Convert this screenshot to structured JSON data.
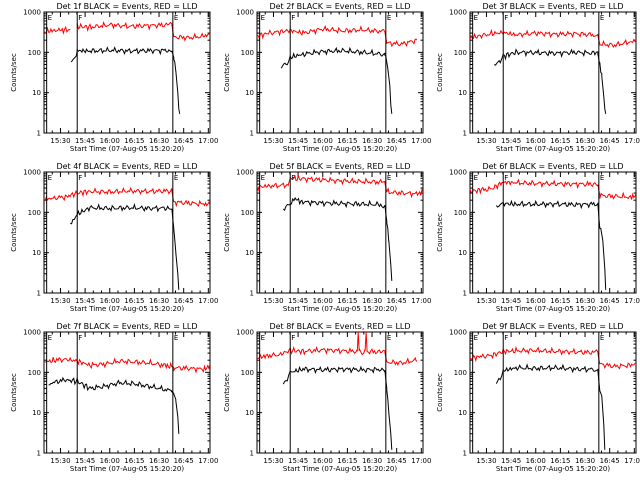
{
  "figure": {
    "background": "#ffffff",
    "event_color": "#000000",
    "lld_color": "#ff0000"
  },
  "chart_data": [
    {
      "type": "line",
      "title": "Det 1f BLACK = Events, RED = LLD",
      "xlabel": "Start Time (07-Aug-05 15:20:20)",
      "ylabel": "Counts/sec",
      "yscale": "log",
      "xlim": [
        15.333,
        17.017
      ],
      "ylim": [
        1,
        1000
      ],
      "xticks": [
        "15:30",
        "15:45",
        "16:00",
        "16:15",
        "16:30",
        "16:45",
        "17:00"
      ],
      "yticks": [
        "1",
        "10",
        "100",
        "1000"
      ],
      "markers": [
        {
          "label": "E",
          "x": 15.36
        },
        {
          "label": "F",
          "x": 15.67
        },
        {
          "label": "E",
          "x": 16.64
        }
      ],
      "series": [
        {
          "name": "Events",
          "color": "#000000",
          "x": [
            15.53,
            15.61,
            15.63,
            15.66,
            15.67,
            15.8,
            16.0,
            16.2,
            16.4,
            16.6,
            16.63,
            16.65,
            16.67,
            16.69,
            16.7,
            16.71
          ],
          "y": [
            null,
            60,
            65,
            80,
            110,
            108,
            112,
            108,
            110,
            112,
            110,
            75,
            35,
            10,
            4,
            3
          ]
        },
        {
          "name": "LLD",
          "color": "#ff0000",
          "x": [
            15.333,
            15.45,
            15.53,
            15.6,
            15.67,
            15.8,
            16.0,
            16.2,
            16.4,
            16.6,
            16.63,
            16.65,
            16.8,
            16.95,
            17.017
          ],
          "y": [
            330,
            350,
            360,
            null,
            440,
            420,
            480,
            440,
            460,
            480,
            470,
            240,
            230,
            250,
            300
          ]
        }
      ]
    },
    {
      "type": "line",
      "title": "Det 2f BLACK = Events, RED = LLD",
      "xlabel": "Start Time (07-Aug-05 15:20:20)",
      "ylabel": "Counts/sec",
      "yscale": "log",
      "xlim": [
        15.333,
        17.017
      ],
      "ylim": [
        1,
        1000
      ],
      "xticks": [
        "15:30",
        "15:45",
        "16:00",
        "16:15",
        "16:30",
        "16:45",
        "17:00"
      ],
      "yticks": [
        "1",
        "10",
        "100",
        "1000"
      ],
      "markers": [
        {
          "label": "E",
          "x": 15.36
        },
        {
          "label": "F",
          "x": 15.67
        },
        {
          "label": "E",
          "x": 16.64
        }
      ],
      "series": [
        {
          "name": "Events",
          "color": "#000000",
          "x": [
            15.5,
            15.58,
            15.64,
            15.67,
            15.8,
            16.0,
            16.2,
            16.4,
            16.6,
            16.63,
            16.64,
            16.66,
            16.68,
            16.69,
            16.7
          ],
          "y": [
            null,
            45,
            55,
            75,
            90,
            105,
            110,
            100,
            90,
            85,
            80,
            40,
            15,
            5,
            3
          ]
        },
        {
          "name": "LLD",
          "color": "#ff0000",
          "x": [
            15.333,
            15.45,
            15.55,
            15.67,
            15.8,
            16.0,
            16.2,
            16.4,
            16.6,
            16.63,
            16.65,
            16.8,
            16.95
          ],
          "y": [
            250,
            300,
            320,
            350,
            300,
            380,
            340,
            360,
            330,
            320,
            170,
            160,
            200
          ]
        }
      ]
    },
    {
      "type": "line",
      "title": "Det 3f BLACK = Events, RED = LLD",
      "xlabel": "Start Time (07-Aug-05 15:20:20)",
      "ylabel": "Counts/sec",
      "yscale": "log",
      "xlim": [
        15.333,
        17.017
      ],
      "ylim": [
        1,
        1000
      ],
      "xticks": [
        "15:30",
        "15:45",
        "16:00",
        "16:15",
        "16:30",
        "16:45",
        "17:00"
      ],
      "yticks": [
        "1",
        "10",
        "100",
        "1000"
      ],
      "markers": [
        {
          "label": "E",
          "x": 15.36
        },
        {
          "label": "F",
          "x": 15.67
        },
        {
          "label": "E",
          "x": 16.64
        }
      ],
      "series": [
        {
          "name": "Events",
          "color": "#000000",
          "x": [
            15.5,
            15.58,
            15.64,
            15.67,
            15.8,
            16.0,
            16.2,
            16.4,
            16.6,
            16.63,
            16.65,
            16.67,
            16.69,
            16.7,
            16.71
          ],
          "y": [
            null,
            50,
            60,
            80,
            100,
            98,
            95,
            100,
            95,
            90,
            50,
            25,
            8,
            4,
            3
          ]
        },
        {
          "name": "LLD",
          "color": "#ff0000",
          "x": [
            15.333,
            15.45,
            15.55,
            15.67,
            15.8,
            16.0,
            16.2,
            16.4,
            16.6,
            16.63,
            16.65,
            16.8,
            16.95,
            17.017
          ],
          "y": [
            230,
            260,
            290,
            310,
            270,
            300,
            280,
            290,
            270,
            260,
            160,
            150,
            180,
            210
          ]
        }
      ]
    },
    {
      "type": "line",
      "title": "Det 4f BLACK = Events, RED = LLD",
      "xlabel": "Start Time (07-Aug-05 15:20:20)",
      "ylabel": "Counts/sec",
      "yscale": "log",
      "xlim": [
        15.333,
        17.017
      ],
      "ylim": [
        1,
        1000
      ],
      "xticks": [
        "15:30",
        "15:45",
        "16:00",
        "16:15",
        "16:30",
        "16:45",
        "17:00"
      ],
      "yticks": [
        "1",
        "10",
        "100",
        "1000"
      ],
      "markers": [
        {
          "label": "E",
          "x": 15.36
        },
        {
          "label": "F",
          "x": 15.67
        },
        {
          "label": "E",
          "x": 16.64
        }
      ],
      "series": [
        {
          "name": "Events",
          "color": "#000000",
          "x": [
            15.55,
            15.6,
            15.64,
            15.67,
            15.8,
            16.0,
            16.2,
            16.4,
            16.6,
            16.63,
            16.65,
            16.67,
            16.69,
            16.7
          ],
          "y": [
            null,
            50,
            60,
            90,
            130,
            125,
            130,
            125,
            128,
            120,
            40,
            10,
            3,
            1.2
          ]
        },
        {
          "name": "LLD",
          "color": "#ff0000",
          "x": [
            15.333,
            15.45,
            15.55,
            15.67,
            15.8,
            16.0,
            16.2,
            16.4,
            16.6,
            16.63,
            16.65,
            16.8,
            16.95,
            17.017
          ],
          "y": [
            210,
            230,
            240,
            300,
            330,
            320,
            340,
            330,
            340,
            330,
            180,
            170,
            160,
            170
          ]
        }
      ]
    },
    {
      "type": "line",
      "title": "Det 5f BLACK = Events, RED = LLD",
      "xlabel": "Start Time (07-Aug-05 15:20:20)",
      "ylabel": "Counts/sec",
      "yscale": "log",
      "xlim": [
        15.333,
        17.017
      ],
      "ylim": [
        1,
        1000
      ],
      "xticks": [
        "15:30",
        "15:45",
        "16:00",
        "16:15",
        "16:30",
        "16:45",
        "17:00"
      ],
      "yticks": [
        "1",
        "10",
        "100",
        "1000"
      ],
      "markers": [
        {
          "label": "E",
          "x": 15.36
        },
        {
          "label": "F",
          "x": 15.67
        },
        {
          "label": "E",
          "x": 16.64
        }
      ],
      "series": [
        {
          "name": "Events",
          "color": "#000000",
          "x": [
            15.55,
            15.6,
            15.64,
            15.67,
            15.72,
            15.8,
            16.0,
            16.2,
            16.4,
            16.6,
            16.63,
            16.65,
            16.67,
            16.69,
            16.7
          ],
          "y": [
            null,
            120,
            140,
            170,
            210,
            180,
            170,
            165,
            160,
            155,
            150,
            60,
            20,
            5,
            2
          ]
        },
        {
          "name": "LLD",
          "color": "#ff0000",
          "x": [
            15.333,
            15.45,
            15.55,
            15.65,
            15.67,
            15.8,
            16.0,
            16.2,
            16.4,
            16.6,
            16.63,
            16.65,
            16.8,
            16.95,
            17.017
          ],
          "y": [
            420,
            450,
            460,
            480,
            700,
            680,
            640,
            600,
            580,
            560,
            540,
            320,
            300,
            290,
            330
          ]
        }
      ]
    },
    {
      "type": "line",
      "title": "Det 6f BLACK = Events, RED = LLD",
      "xlabel": "Start Time (07-Aug-05 15:20:20)",
      "ylabel": "Counts/sec",
      "yscale": "log",
      "xlim": [
        15.333,
        17.017
      ],
      "ylim": [
        1,
        1000
      ],
      "xticks": [
        "15:30",
        "15:45",
        "16:00",
        "16:15",
        "16:30",
        "16:45",
        "17:00"
      ],
      "yticks": [
        "1",
        "10",
        "100",
        "1000"
      ],
      "markers": [
        {
          "label": "E",
          "x": 15.36
        },
        {
          "label": "F",
          "x": 15.67
        },
        {
          "label": "E",
          "x": 16.64
        }
      ],
      "series": [
        {
          "name": "Events",
          "color": "#000000",
          "x": [
            15.55,
            15.6,
            15.64,
            15.67,
            15.8,
            16.0,
            16.2,
            16.4,
            16.6,
            16.63,
            16.65,
            16.66,
            16.68,
            16.7,
            16.71
          ],
          "y": [
            null,
            150,
            160,
            165,
            160,
            158,
            160,
            155,
            160,
            158,
            40,
            40,
            20,
            4,
            1.2
          ]
        },
        {
          "name": "LLD",
          "color": "#ff0000",
          "x": [
            15.333,
            15.45,
            15.55,
            15.67,
            15.8,
            16.0,
            16.2,
            16.4,
            16.6,
            16.63,
            16.65,
            16.8,
            16.95,
            17.017
          ],
          "y": [
            330,
            360,
            380,
            560,
            540,
            520,
            510,
            500,
            500,
            490,
            260,
            250,
            240,
            270
          ]
        }
      ]
    },
    {
      "type": "line",
      "title": "Det 7f BLACK = Events, RED = LLD",
      "xlabel": "Start Time (07-Aug-05 15:20:20)",
      "ylabel": "Counts/sec",
      "yscale": "log",
      "xlim": [
        15.333,
        17.017
      ],
      "ylim": [
        1,
        1000
      ],
      "xticks": [
        "15:30",
        "15:45",
        "16:00",
        "16:15",
        "16:30",
        "16:45",
        "17:00"
      ],
      "yticks": [
        "1",
        "10",
        "100",
        "1000"
      ],
      "markers": [
        {
          "label": "E",
          "x": 15.36
        },
        {
          "label": "F",
          "x": 15.67
        },
        {
          "label": "E",
          "x": 16.64
        }
      ],
      "series": [
        {
          "name": "Events",
          "color": "#000000",
          "x": [
            15.38,
            15.45,
            15.55,
            15.67,
            15.8,
            15.95,
            16.1,
            16.25,
            16.4,
            16.55,
            16.6,
            16.63,
            16.65,
            16.67,
            16.69,
            16.7
          ],
          "y": [
            50,
            58,
            65,
            60,
            40,
            45,
            55,
            52,
            45,
            38,
            35,
            34,
            30,
            20,
            8,
            3
          ]
        },
        {
          "name": "LLD",
          "color": "#ff0000",
          "x": [
            15.333,
            15.45,
            15.55,
            15.67,
            15.8,
            15.95,
            16.1,
            16.25,
            16.4,
            16.55,
            16.63,
            16.65,
            16.8,
            16.95,
            17.017
          ],
          "y": [
            180,
            200,
            210,
            190,
            150,
            160,
            190,
            180,
            170,
            150,
            140,
            130,
            125,
            120,
            150
          ]
        }
      ]
    },
    {
      "type": "line",
      "title": "Det 8f BLACK = Events, RED = LLD",
      "xlabel": "Start Time (07-Aug-05 15:20:20)",
      "ylabel": "Counts/sec",
      "yscale": "log",
      "xlim": [
        15.333,
        17.017
      ],
      "ylim": [
        1,
        1000
      ],
      "xticks": [
        "15:30",
        "15:45",
        "16:00",
        "16:15",
        "16:30",
        "16:45",
        "17:00"
      ],
      "yticks": [
        "1",
        "10",
        "100",
        "1000"
      ],
      "markers": [
        {
          "label": "E",
          "x": 15.36
        },
        {
          "label": "F",
          "x": 15.67
        },
        {
          "label": "E",
          "x": 16.64
        }
      ],
      "series": [
        {
          "name": "Events",
          "color": "#000000",
          "x": [
            15.55,
            15.6,
            15.64,
            15.67,
            15.8,
            16.0,
            16.2,
            16.4,
            16.6,
            16.63,
            16.65,
            16.67,
            16.69,
            16.7
          ],
          "y": [
            null,
            50,
            60,
            100,
            120,
            115,
            120,
            115,
            118,
            112,
            40,
            10,
            3,
            1.2
          ]
        },
        {
          "name": "LLD",
          "color": "#ff0000",
          "x": [
            15.333,
            15.45,
            15.55,
            15.67,
            15.8,
            16.0,
            16.2,
            16.35,
            16.36,
            16.37,
            16.4,
            16.43,
            16.44,
            16.45,
            16.6,
            16.63,
            16.65,
            16.8,
            16.95
          ],
          "y": [
            230,
            260,
            270,
            350,
            330,
            360,
            340,
            330,
            1000,
            340,
            330,
            340,
            1000,
            330,
            320,
            310,
            180,
            170,
            200
          ]
        }
      ]
    },
    {
      "type": "line",
      "title": "Det 9f BLACK = Events, RED = LLD",
      "xlabel": "Start Time (07-Aug-05 15:20:20)",
      "ylabel": "Counts/sec",
      "yscale": "log",
      "xlim": [
        15.333,
        17.017
      ],
      "ylim": [
        1,
        1000
      ],
      "xticks": [
        "15:30",
        "15:45",
        "16:00",
        "16:15",
        "16:30",
        "16:45",
        "17:00"
      ],
      "yticks": [
        "1",
        "10",
        "100",
        "1000"
      ],
      "markers": [
        {
          "label": "E",
          "x": 15.36
        },
        {
          "label": "F",
          "x": 15.67
        },
        {
          "label": "E",
          "x": 16.64
        }
      ],
      "series": [
        {
          "name": "Events",
          "color": "#000000",
          "x": [
            15.55,
            15.6,
            15.64,
            15.67,
            15.8,
            16.0,
            16.2,
            16.4,
            16.6,
            16.63,
            16.65,
            16.67,
            16.69,
            16.7
          ],
          "y": [
            null,
            60,
            70,
            110,
            130,
            125,
            130,
            120,
            118,
            110,
            35,
            25,
            5,
            1.2
          ]
        },
        {
          "name": "LLD",
          "color": "#ff0000",
          "x": [
            15.333,
            15.45,
            15.55,
            15.67,
            15.8,
            16.0,
            16.2,
            16.4,
            16.6,
            16.63,
            16.65,
            16.8,
            16.95,
            17.017
          ],
          "y": [
            220,
            250,
            260,
            330,
            340,
            350,
            330,
            320,
            310,
            300,
            160,
            140,
            150,
            170
          ]
        }
      ]
    }
  ]
}
